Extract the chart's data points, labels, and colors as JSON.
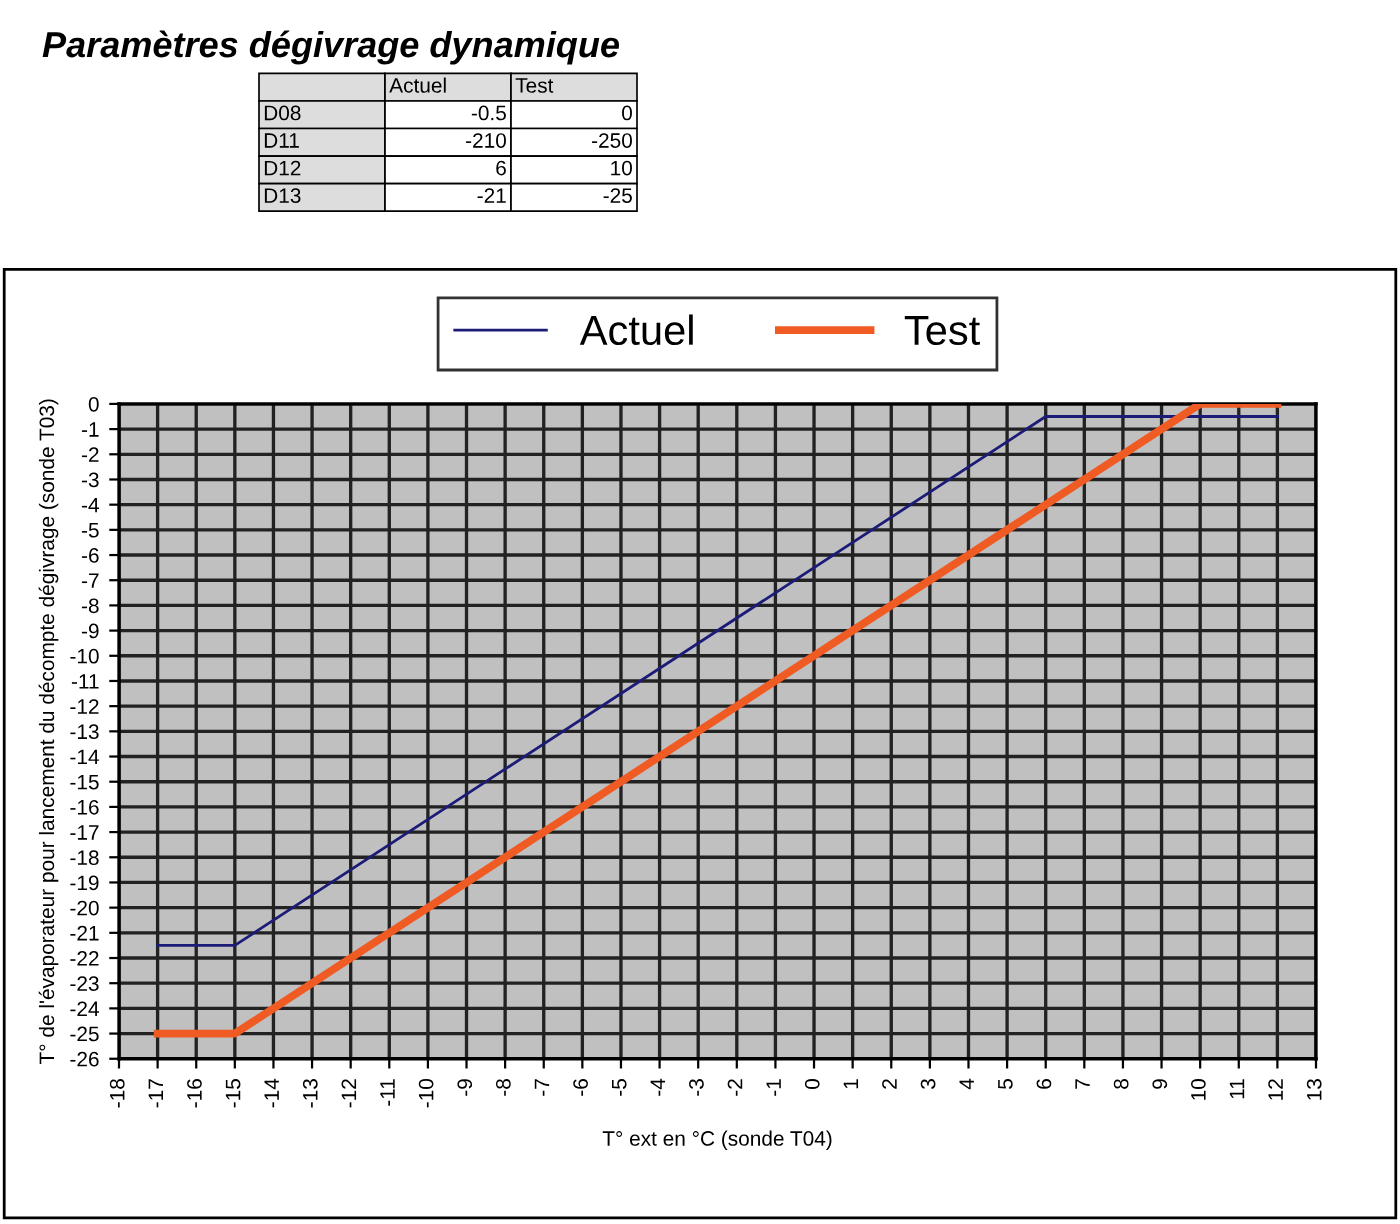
{
  "chart_data": {
    "type": "line",
    "title": "Paramètres dégivrage dynamique",
    "annotations": [
      "Actuel",
      "Test",
      "D08",
      "-0.5",
      "0",
      "D11",
      "-210",
      "-250",
      "D12",
      "6",
      "10",
      "D13",
      "-21",
      "-25"
    ],
    "xlabel": "T° ext en °C (sonde T04)",
    "ylabel": "T° de l'évaporateur pour lancement du décompte dégivrage (sonde T03)",
    "series": [
      {
        "name": "Actuel",
        "color": "#1c1c78",
        "x": [
          -17,
          -15,
          6,
          12
        ],
        "values": [
          -21.5,
          -21.5,
          -0.5,
          -0.5
        ]
      },
      {
        "name": "Test",
        "color": "#f05a23",
        "x": [
          -17,
          -15,
          10,
          12
        ],
        "values": [
          -25,
          -25,
          0,
          0
        ]
      }
    ],
    "xlim": [
      -18,
      13
    ],
    "xticks": [
      -18,
      -17,
      -16,
      -15,
      -14,
      -13,
      -12,
      -11,
      -10,
      -9,
      -8,
      -7,
      -6,
      -5,
      -4,
      -3,
      -2,
      -1,
      0,
      1,
      2,
      3,
      4,
      5,
      6,
      7,
      8,
      9,
      10,
      11,
      12,
      13
    ],
    "ylim": [
      -26,
      0
    ],
    "yticks": [
      -26,
      -25,
      -24,
      -23,
      -22,
      -21,
      -20,
      -19,
      -18,
      -17,
      -16,
      -15,
      -14,
      -13,
      -12,
      -11,
      -10,
      -9,
      -8,
      -7,
      -6,
      -5,
      -4,
      -3,
      -2,
      -1,
      0
    ],
    "grid": true,
    "legend": "top",
    "line_style": "solid",
    "marker": "none"
  }
}
